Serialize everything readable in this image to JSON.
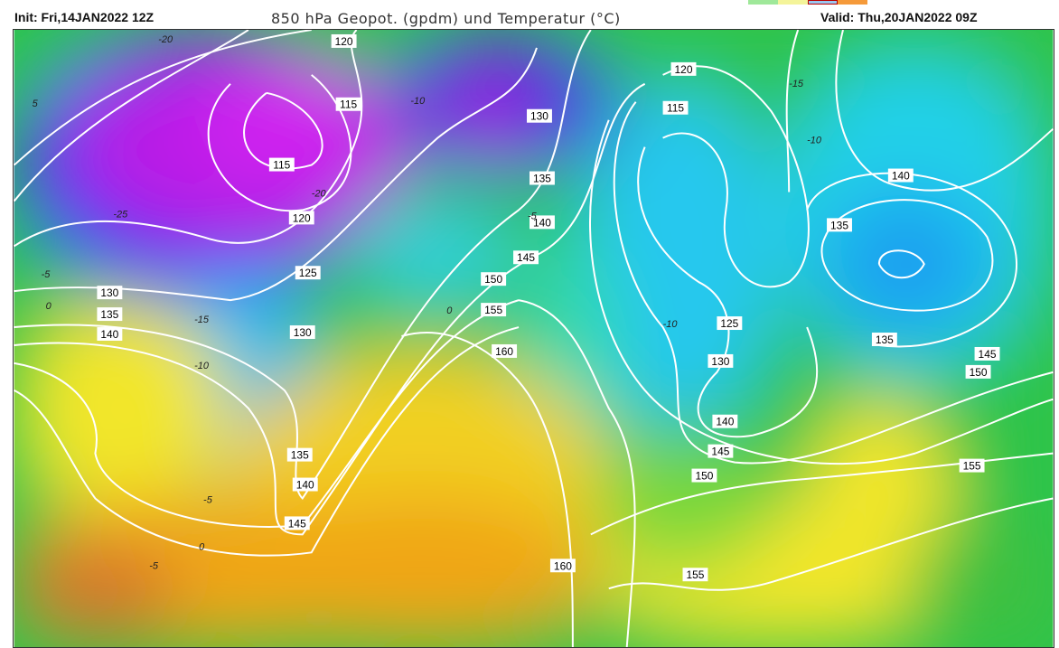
{
  "header": {
    "init": "Init: Fri,14JAN2022 12Z",
    "title": "850 hPa Geopot. (gpdm) und Temperatur (°C)",
    "valid": "Valid: Thu,20JAN2022 09Z"
  },
  "palette": {
    "magenta": "#b81ee6",
    "blue": "#2a3cf5",
    "cyan": "#1ed2f0",
    "green": "#2fc44a",
    "lightgreen": "#7ad83a",
    "yellow": "#f2e62a",
    "orange": "#f0a612",
    "darkorange": "#d8782a",
    "contour": "#ffffff"
  },
  "geopotential_labels": [
    "120",
    "115",
    "115",
    "120",
    "125",
    "130",
    "135",
    "140",
    "130",
    "135",
    "140",
    "145",
    "130",
    "135",
    "140",
    "145",
    "150",
    "155",
    "160",
    "160",
    "120",
    "115",
    "140",
    "135",
    "125",
    "130",
    "140",
    "145",
    "150",
    "155",
    "135",
    "145",
    "150",
    "155"
  ],
  "temperature_labels": [
    "-20",
    "-25",
    "-20",
    "-15",
    "-10",
    "-5",
    "0",
    "-5",
    "0",
    "-5",
    "-10",
    "-15",
    "-10",
    "-10",
    "-5",
    "0",
    "5"
  ]
}
